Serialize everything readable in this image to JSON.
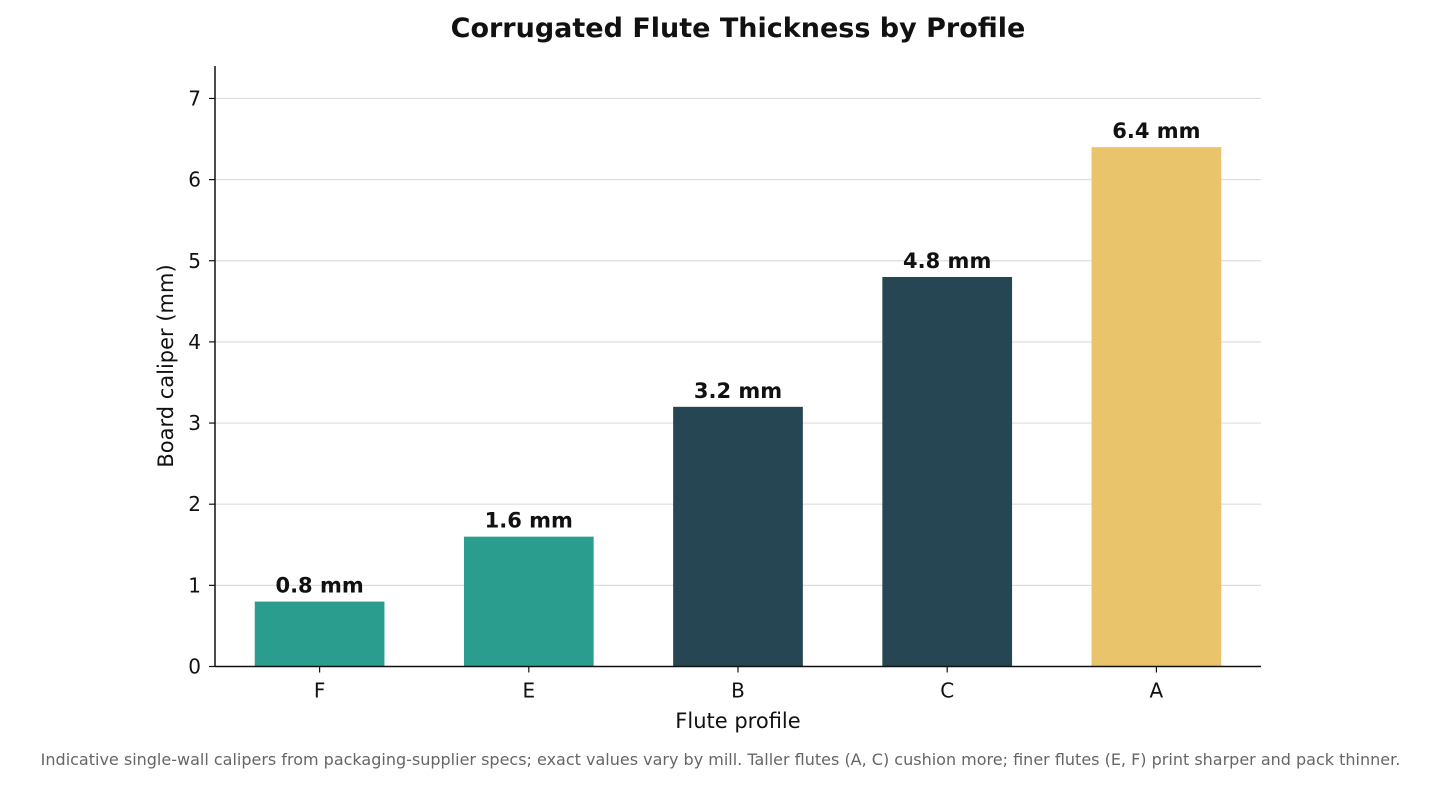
{
  "chart_data": {
    "type": "bar",
    "title": "Corrugated Flute Thickness by Profile",
    "xlabel": "Flute profile",
    "ylabel": "Board caliper (mm)",
    "categories": [
      "F",
      "E",
      "B",
      "C",
      "A"
    ],
    "values": [
      0.8,
      1.6,
      3.2,
      4.8,
      6.4
    ],
    "value_labels": [
      "0.8 mm",
      "1.6 mm",
      "3.2 mm",
      "4.8 mm",
      "6.4 mm"
    ],
    "bar_colors": [
      "#2a9d8f",
      "#2a9d8f",
      "#264653",
      "#264653",
      "#e9c46a"
    ],
    "ylim": [
      0,
      7.4
    ],
    "yticks": [
      0,
      1,
      2,
      3,
      4,
      5,
      6,
      7
    ],
    "grid": "horizontal",
    "legend": "none"
  },
  "footnote": "Indicative single-wall calipers from packaging-supplier specs; exact values vary by mill. Taller flutes (A, C) cushion more; finer flutes (E, F) print sharper and pack thinner."
}
